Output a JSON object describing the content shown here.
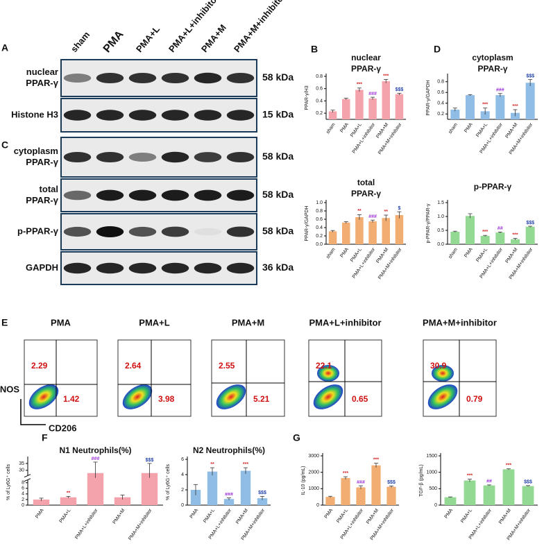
{
  "western_blot": {
    "lanes": [
      "sham",
      "PMA",
      "PMA+L",
      "PMA+L+inhibitor",
      "PMA+M",
      "PMA+M+inhibitor"
    ],
    "panels": [
      {
        "letter": "A",
        "rows": [
          {
            "label": [
              "nuclear",
              "PPAR-γ"
            ],
            "kda": "58 kDa"
          },
          {
            "label": [
              "Histone H3"
            ],
            "kda": "15 kDa"
          }
        ]
      },
      {
        "letter": "C",
        "rows": [
          {
            "label": [
              "cytoplasm",
              "PPAR-γ"
            ],
            "kda": "58 kDa"
          },
          {
            "label": [
              "total",
              "PPAR-γ"
            ],
            "kda": "58 kDa"
          },
          {
            "label": [
              "p-PPAR-γ"
            ],
            "kda": "58 kDa"
          },
          {
            "label": [
              "GAPDH"
            ],
            "kda": "36 kDa"
          }
        ]
      }
    ]
  },
  "flow_cytometry": {
    "letter": "E",
    "y_label": "iNOS",
    "x_label": "CD206",
    "groups": [
      {
        "name": "PMA",
        "upper_left": 2.29,
        "lower_right": 1.42
      },
      {
        "name": "PMA+L",
        "upper_left": 2.64,
        "lower_right": 3.98
      },
      {
        "name": "PMA+M",
        "upper_left": 2.55,
        "lower_right": 5.21
      },
      {
        "name": "PMA+L+inhibitor",
        "upper_left": 22.1,
        "lower_right": 0.65
      },
      {
        "name": "PMA+M+inhibitor",
        "upper_left": 30.9,
        "lower_right": 0.79
      }
    ]
  },
  "chart_data": [
    {
      "type": "bar",
      "panel": "B",
      "title": [
        "nuclear",
        "PPAR-γ"
      ],
      "ylabel": "PPAR-γ/H3",
      "categories": [
        "sham",
        "PMA",
        "PMA+L",
        "PMA+L+inhibitor",
        "PMA+M",
        "PMA+M+inhibitor"
      ],
      "values": [
        0.23,
        0.43,
        0.58,
        0.44,
        0.72,
        0.51
      ],
      "errors": [
        0.02,
        0.015,
        0.03,
        0.02,
        0.03,
        0.015
      ],
      "annotations": [
        null,
        null,
        {
          "text": "***",
          "color": "#d62728"
        },
        {
          "text": "###",
          "color": "#9b30d9"
        },
        {
          "text": "***",
          "color": "#d62728"
        },
        {
          "text": "$$$",
          "color": "#1f3fa8"
        }
      ],
      "color": "#f4a3ac",
      "ylim": [
        0.1,
        0.8
      ],
      "yticks": [
        0.2,
        0.4,
        0.6,
        0.8
      ]
    },
    {
      "type": "bar",
      "panel": "D",
      "title": [
        "cytoplasm",
        "PPAR-γ"
      ],
      "ylabel": "PPAR-γ/GAPDH",
      "categories": [
        "sham",
        "PMA",
        "PMA+L",
        "PMA+L+inhibitor",
        "PMA+M",
        "PMA+M+inhibitor"
      ],
      "values": [
        0.28,
        0.55,
        0.25,
        0.55,
        0.22,
        0.78
      ],
      "errors": [
        0.03,
        0.01,
        0.06,
        0.03,
        0.06,
        0.06
      ],
      "annotations": [
        null,
        null,
        {
          "text": "***",
          "color": "#d62728"
        },
        {
          "text": "###",
          "color": "#9b30d9"
        },
        {
          "text": "***",
          "color": "#d62728"
        },
        {
          "text": "$$$",
          "color": "#1f3fa8"
        }
      ],
      "color": "#8fbde6",
      "ylim": [
        0.1,
        0.9
      ],
      "yticks": [
        0.2,
        0.4,
        0.6,
        0.8
      ]
    },
    {
      "type": "bar",
      "title": [
        "total",
        "PPAR-γ"
      ],
      "ylabel": "PPAR-γ/GAPDH",
      "categories": [
        "sham",
        "PMA",
        "PMA+L",
        "PMA+L+inhibitor",
        "PMA+M",
        "PMA+M+inhibitor"
      ],
      "values": [
        0.31,
        0.52,
        0.65,
        0.55,
        0.63,
        0.7
      ],
      "errors": [
        0.02,
        0.02,
        0.06,
        0.03,
        0.07,
        0.08
      ],
      "annotations": [
        null,
        null,
        {
          "text": "**",
          "color": "#d62728"
        },
        {
          "text": "###",
          "color": "#9b30d9"
        },
        {
          "text": "**",
          "color": "#d62728"
        },
        {
          "text": "$",
          "color": "#1f3fa8"
        }
      ],
      "color": "#f2ad72",
      "ylim": [
        0,
        1
      ],
      "yticks": [
        {
          "value": 0,
          "label": "0.0"
        },
        0.2,
        0.4,
        0.6,
        0.8,
        {
          "value": 1,
          "label": "1.0"
        }
      ]
    },
    {
      "type": "bar",
      "title": [
        "p-PPAR-γ"
      ],
      "ylabel": "p-PPAR-γ/PPAR-γ",
      "categories": [
        "sham",
        "PMA",
        "PMA+L",
        "PMA+L+inhibitor",
        "PMA+M",
        "PMA+M+inhibitor"
      ],
      "values": [
        0.45,
        1.02,
        0.3,
        0.42,
        0.18,
        0.63
      ],
      "errors": [
        0.02,
        0.08,
        0.02,
        0.02,
        0.03,
        0.02
      ],
      "annotations": [
        null,
        null,
        {
          "text": "***",
          "color": "#d62728"
        },
        {
          "text": "##",
          "color": "#9b30d9"
        },
        {
          "text": "***",
          "color": "#d62728"
        },
        {
          "text": "$$$",
          "color": "#1f3fa8"
        }
      ],
      "color": "#93d893",
      "ylim": [
        0,
        1.5
      ],
      "yticks": [
        {
          "value": 0,
          "label": "0.0"
        },
        0.5,
        {
          "value": 1,
          "label": "1.0"
        },
        1.5
      ]
    },
    {
      "type": "bar",
      "panel": "F",
      "title": [
        "N1 Neutrophils(%)"
      ],
      "ylabel": "% of Ly6G⁺ cells",
      "categories": [
        "PMA",
        "PMA+L",
        "PMA+L+inhibitor",
        "PMA+M",
        "PMA+M+inhibitor"
      ],
      "values": [
        2.0,
        2.8,
        28,
        2.8,
        28
      ],
      "errors": [
        0.5,
        0.3,
        8,
        0.8,
        7
      ],
      "annotations": [
        null,
        {
          "text": "**",
          "color": "#d62728"
        },
        {
          "text": "###",
          "color": "#9b30d9"
        },
        null,
        {
          "text": "$$$",
          "color": "#1f3fa8"
        }
      ],
      "color": "#f4a3ac",
      "ylim": [
        0,
        38
      ],
      "ybreak": [
        9,
        26
      ],
      "yticks": [
        0,
        2,
        4,
        6,
        8,
        30,
        35
      ]
    },
    {
      "type": "bar",
      "title": [
        "N2  Neutrophils(%)"
      ],
      "ylabel": "% of Ly6G⁺ cells",
      "categories": [
        "PMA",
        "PMA+L",
        "PMA+L+inhibitor",
        "PMA+M",
        "PMA+M+inhibitor"
      ],
      "values": [
        2.0,
        4.4,
        0.8,
        4.5,
        0.9
      ],
      "errors": [
        0.7,
        0.5,
        0.15,
        0.4,
        0.25
      ],
      "annotations": [
        null,
        {
          "text": "**",
          "color": "#d62728"
        },
        {
          "text": "###",
          "color": "#9b30d9"
        },
        {
          "text": "***",
          "color": "#d62728"
        },
        {
          "text": "$$$",
          "color": "#1f3fa8"
        }
      ],
      "color": "#8fbde6",
      "ylim": [
        0,
        6
      ],
      "yticks": [
        0,
        2,
        4,
        6
      ]
    },
    {
      "type": "bar",
      "panel": "G",
      "ylabel": "IL-10  (pg/mL)",
      "categories": [
        "PMA",
        "PMA+L",
        "PMA+L+inhibitor",
        "PMA+M",
        "PMA+M+inhibitor"
      ],
      "values": [
        500,
        1650,
        1080,
        2420,
        1120
      ],
      "errors": [
        40,
        80,
        100,
        130,
        50
      ],
      "annotations": [
        null,
        {
          "text": "***",
          "color": "#d62728"
        },
        {
          "text": "###",
          "color": "#9b30d9"
        },
        {
          "text": "***",
          "color": "#d62728"
        },
        {
          "text": "$$$",
          "color": "#1f3fa8"
        }
      ],
      "color": "#f2ad72",
      "ylim": [
        0,
        3000
      ],
      "yticks": [
        0,
        1000,
        2000,
        3000
      ]
    },
    {
      "type": "bar",
      "ylabel": "TGF-β  (pg/mL)",
      "categories": [
        "PMA",
        "PMA+L",
        "PMA+L+inhibitor",
        "PMA+M",
        "PMA+M+inhibitor"
      ],
      "values": [
        240,
        750,
        600,
        1090,
        580
      ],
      "errors": [
        10,
        40,
        15,
        15,
        15
      ],
      "annotations": [
        null,
        {
          "text": "***",
          "color": "#d62728"
        },
        {
          "text": "##",
          "color": "#9b30d9"
        },
        {
          "text": "***",
          "color": "#d62728"
        },
        {
          "text": "$$$",
          "color": "#1f3fa8"
        }
      ],
      "color": "#93d893",
      "ylim": [
        0,
        1500
      ],
      "yticks": [
        0,
        500,
        1000,
        1500
      ]
    }
  ]
}
